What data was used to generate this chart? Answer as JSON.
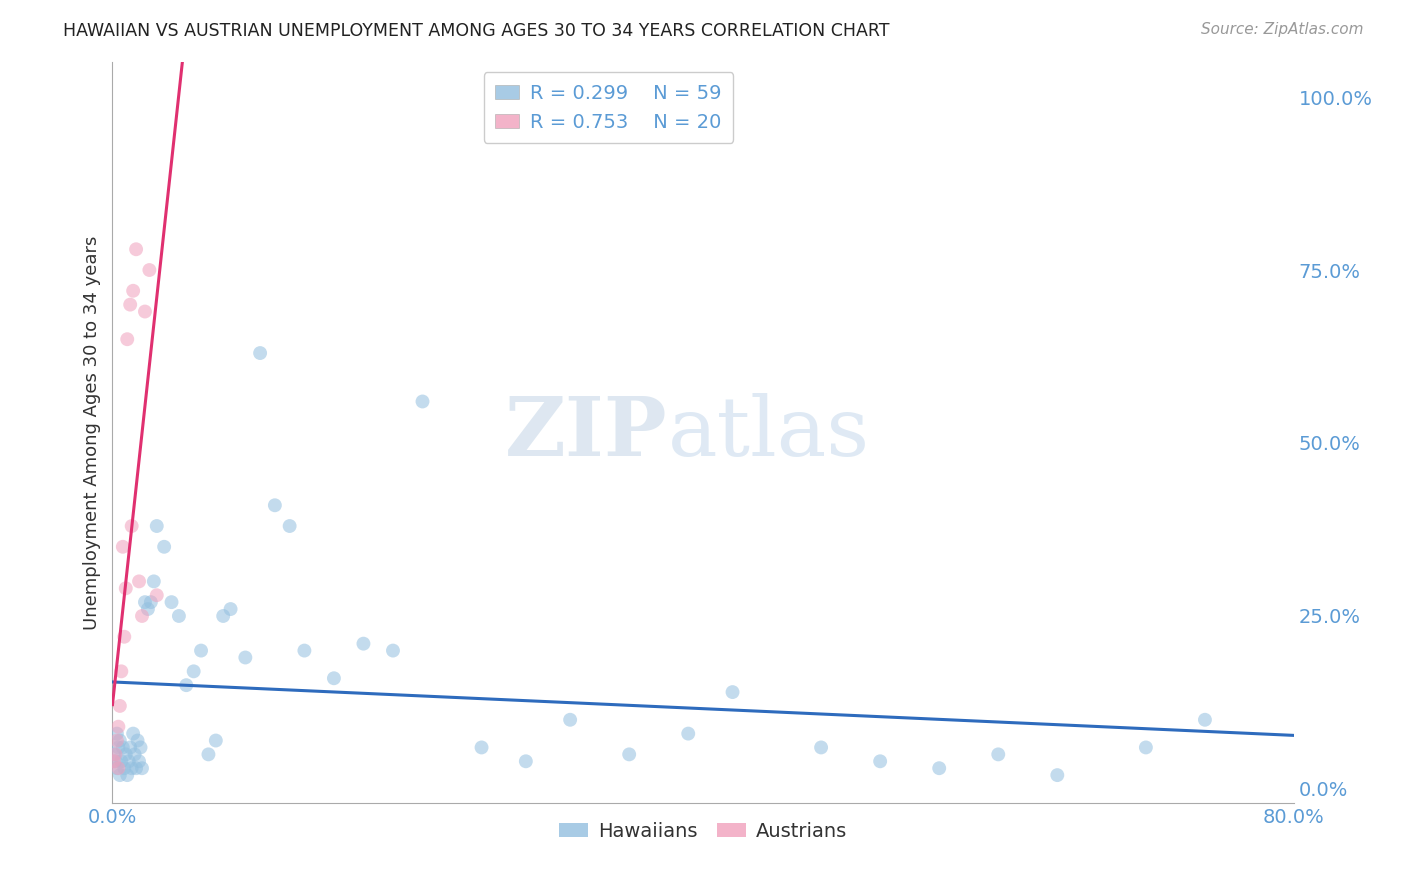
{
  "title": "HAWAIIAN VS AUSTRIAN UNEMPLOYMENT AMONG AGES 30 TO 34 YEARS CORRELATION CHART",
  "source": "Source: ZipAtlas.com",
  "ylabel": "Unemployment Among Ages 30 to 34 years",
  "xlim": [
    0.0,
    0.8
  ],
  "ylim": [
    -0.02,
    1.05
  ],
  "background_color": "#ffffff",
  "watermark_ZIP": "ZIP",
  "watermark_atlas": "atlas",
  "hawaiians_color": "#92bfdf",
  "austrians_color": "#f0a0bc",
  "trend_hawaiians_color": "#2e6bbd",
  "trend_austrians_color": "#e03070",
  "grid_color": "#d0d0d0",
  "right_tick_color": "#5b9bd5",
  "bottom_tick_color": "#5b9bd5",
  "hawaiians_x": [
    0.001,
    0.002,
    0.003,
    0.003,
    0.004,
    0.005,
    0.005,
    0.006,
    0.007,
    0.008,
    0.009,
    0.01,
    0.011,
    0.012,
    0.013,
    0.014,
    0.015,
    0.016,
    0.017,
    0.018,
    0.019,
    0.02,
    0.022,
    0.024,
    0.026,
    0.028,
    0.03,
    0.035,
    0.04,
    0.045,
    0.05,
    0.055,
    0.06,
    0.065,
    0.07,
    0.075,
    0.08,
    0.09,
    0.1,
    0.11,
    0.12,
    0.13,
    0.15,
    0.17,
    0.19,
    0.21,
    0.25,
    0.28,
    0.31,
    0.35,
    0.39,
    0.42,
    0.48,
    0.52,
    0.56,
    0.6,
    0.64,
    0.7,
    0.74
  ],
  "hawaiians_y": [
    0.05,
    0.04,
    0.03,
    0.08,
    0.06,
    0.02,
    0.07,
    0.04,
    0.06,
    0.03,
    0.05,
    0.02,
    0.04,
    0.06,
    0.03,
    0.08,
    0.05,
    0.03,
    0.07,
    0.04,
    0.06,
    0.03,
    0.27,
    0.26,
    0.27,
    0.3,
    0.38,
    0.35,
    0.27,
    0.25,
    0.15,
    0.17,
    0.2,
    0.05,
    0.07,
    0.25,
    0.26,
    0.19,
    0.63,
    0.41,
    0.38,
    0.2,
    0.16,
    0.21,
    0.2,
    0.56,
    0.06,
    0.04,
    0.1,
    0.05,
    0.08,
    0.14,
    0.06,
    0.04,
    0.03,
    0.05,
    0.02,
    0.06,
    0.1
  ],
  "austrians_x": [
    0.001,
    0.002,
    0.003,
    0.004,
    0.004,
    0.005,
    0.006,
    0.007,
    0.008,
    0.009,
    0.01,
    0.012,
    0.013,
    0.014,
    0.016,
    0.018,
    0.02,
    0.022,
    0.025,
    0.03
  ],
  "austrians_y": [
    0.04,
    0.05,
    0.07,
    0.03,
    0.09,
    0.12,
    0.17,
    0.35,
    0.22,
    0.29,
    0.65,
    0.7,
    0.38,
    0.72,
    0.78,
    0.3,
    0.25,
    0.69,
    0.75,
    0.28
  ],
  "marker_size": 100,
  "marker_alpha": 0.55,
  "legend_R_hawaiians": "R = 0.299",
  "legend_N_hawaiians": "N = 59",
  "legend_R_austrians": "R = 0.753",
  "legend_N_austrians": "N = 20"
}
